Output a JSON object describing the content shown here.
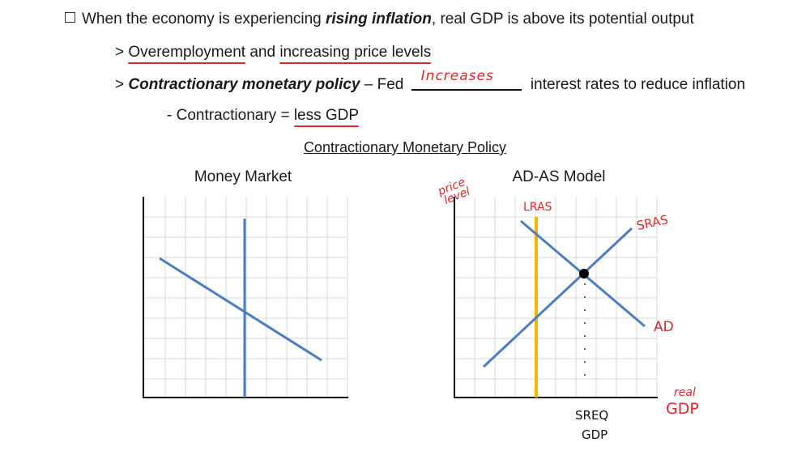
{
  "text": {
    "line1_a": "When the economy is experiencing ",
    "line1_b": "rising inflation",
    "line1_c": ", real GDP is above its potential output",
    "line2_prefix": "> ",
    "line2_a": "Overemployment",
    "line2_b": " and ",
    "line2_c": "increasing price levels",
    "line3_prefix": "> ",
    "line3_a": "Contractionary monetary policy",
    "line3_b": " – Fed ",
    "line3_blank": "Increases",
    "line3_c": " interest rates to reduce inflation",
    "line4_a": "- Contractionary = ",
    "line4_b": "less GDP",
    "section_title": "Contractionary Monetary Policy"
  },
  "charts": {
    "money_market": {
      "title": "Money Market"
    },
    "adas": {
      "title": "AD-AS Model",
      "y_label": "price level",
      "x_label": "real GDP",
      "curve_labels": {
        "lras": "LRAS",
        "sras": "SRAS",
        "ad": "AD"
      },
      "eq_label_line1": "SREQ",
      "eq_label_line2": "GDP"
    }
  },
  "colors": {
    "curve": "#4a7ebf",
    "lras": "#f5b400",
    "annotation": "#e0252b",
    "axis": "#111111",
    "grid": "#d9d9d9"
  }
}
